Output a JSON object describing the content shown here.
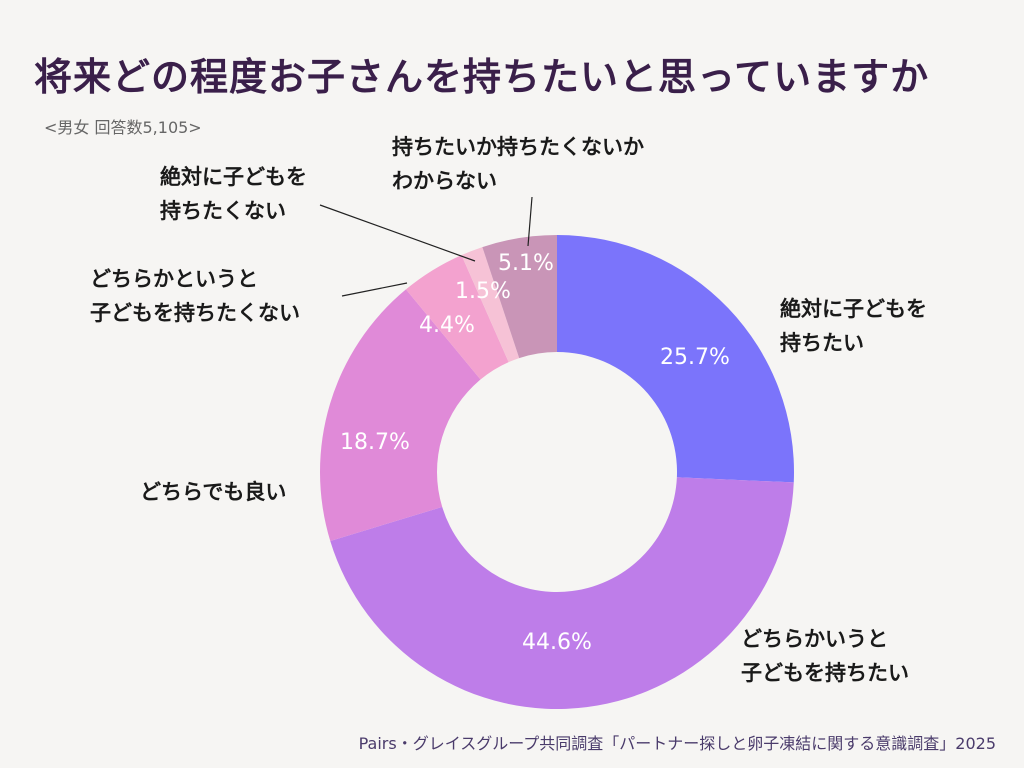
{
  "title": "将来どの程度お子さんを持ちたいと思っていますか",
  "subtitle": "<男女 回答数5,105>",
  "footer": "Pairs・グレイスグループ共同調査「パートナー探しと卵子凍結に関する意識調査」2025",
  "chart_data": {
    "type": "pie",
    "variant": "donut",
    "title": "将来どの程度お子さんを持ちたいと思っていますか",
    "unit": "%",
    "slices": [
      {
        "label_lines": [
          "絶対に子どもを",
          "持ちたい"
        ],
        "value": 25.7,
        "value_label": "25.7%",
        "color": "#7b74fb"
      },
      {
        "label_lines": [
          "どちらかいうと",
          "子どもを持ちたい"
        ],
        "value": 44.6,
        "value_label": "44.6%",
        "color": "#be7de9"
      },
      {
        "label_lines": [
          "どちらでも良い"
        ],
        "value": 18.7,
        "value_label": "18.7%",
        "color": "#e08ad8"
      },
      {
        "label_lines": [
          "どちらかというと",
          "子どもを持ちたくない"
        ],
        "value": 4.4,
        "value_label": "4.4%",
        "color": "#f3a2cf"
      },
      {
        "label_lines": [
          "絶対に子どもを",
          "持ちたくない"
        ],
        "value": 1.5,
        "value_label": "1.5%",
        "color": "#f6c2d6"
      },
      {
        "label_lines": [
          "持ちたいか持ちたくないか",
          "わからない"
        ],
        "value": 5.1,
        "value_label": "5.1%",
        "color": "#c995b7"
      }
    ]
  }
}
